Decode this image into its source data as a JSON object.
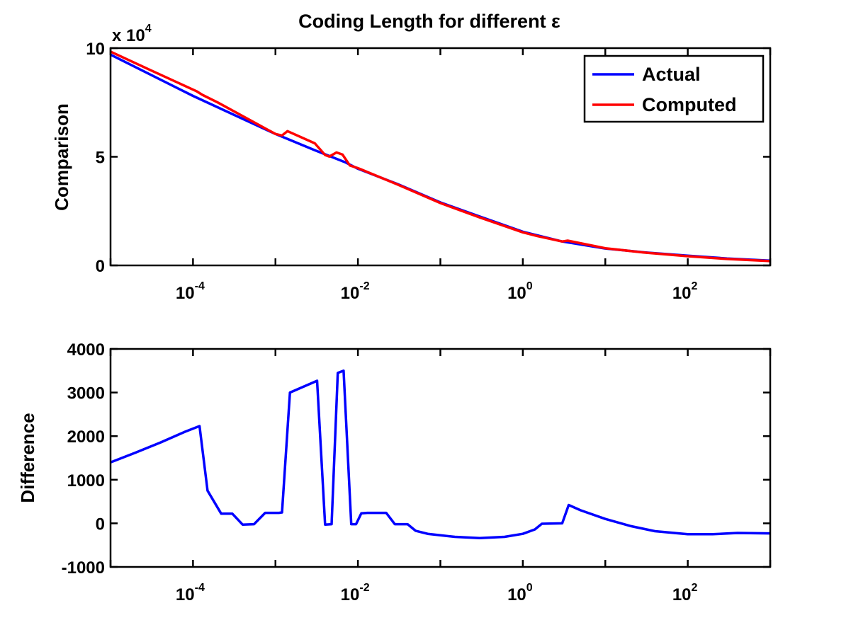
{
  "figure_title": "Coding Length for different ε",
  "chart_data": [
    {
      "type": "line",
      "title": "Coding Length for different ε",
      "xscale": "log",
      "xlim": [
        1e-05,
        1000
      ],
      "ylim": [
        0,
        100000
      ],
      "ylabel": "Comparison",
      "xlabel": "",
      "y_multiplier_label": "x 10",
      "y_multiplier_exp": "4",
      "xtick_labels": [
        {
          "x": 0.0001,
          "base": "10",
          "exp": "-4"
        },
        {
          "x": 0.01,
          "base": "10",
          "exp": "-2"
        },
        {
          "x": 1,
          "base": "10",
          "exp": "0"
        },
        {
          "x": 100,
          "base": "10",
          "exp": "2"
        }
      ],
      "ytick_labels": [
        {
          "y": 0,
          "label": "0"
        },
        {
          "y": 50000,
          "label": "5"
        },
        {
          "y": 100000,
          "label": "10"
        }
      ],
      "legend_position": "top-right",
      "grid": false,
      "series": [
        {
          "name": "Actual",
          "color": "#0000ff",
          "points": [
            [
              1e-05,
              97000
            ],
            [
              0.0001,
              78000
            ],
            [
              0.001,
              60500
            ],
            [
              0.003,
              53000
            ],
            [
              0.007,
              47500
            ],
            [
              0.01,
              44500
            ],
            [
              0.03,
              37500
            ],
            [
              0.1,
              29000
            ],
            [
              0.3,
              22500
            ],
            [
              1,
              15500
            ],
            [
              3,
              11000
            ],
            [
              10,
              7800
            ],
            [
              30,
              6000
            ],
            [
              100,
              4500
            ],
            [
              300,
              3200
            ],
            [
              1000,
              2200
            ]
          ]
        },
        {
          "name": "Computed",
          "color": "#ff0000",
          "points": [
            [
              1e-05,
              98400
            ],
            [
              3e-05,
              90000
            ],
            [
              0.00011,
              80200
            ],
            [
              0.00013,
              78500
            ],
            [
              0.0002,
              75000
            ],
            [
              0.001,
              60500
            ],
            [
              0.0012,
              59800
            ],
            [
              0.0014,
              61800
            ],
            [
              0.003,
              56200
            ],
            [
              0.004,
              50800
            ],
            [
              0.0045,
              50100
            ],
            [
              0.0055,
              52000
            ],
            [
              0.0065,
              51000
            ],
            [
              0.008,
              46000
            ],
            [
              0.01,
              44800
            ],
            [
              0.03,
              37300
            ],
            [
              0.1,
              28700
            ],
            [
              0.3,
              22100
            ],
            [
              1,
              15200
            ],
            [
              1.5,
              13500
            ],
            [
              3,
              11000
            ],
            [
              3.5,
              11400
            ],
            [
              10,
              7900
            ],
            [
              30,
              5900
            ],
            [
              100,
              4250
            ],
            [
              300,
              2950
            ],
            [
              1000,
              2000
            ]
          ]
        }
      ]
    },
    {
      "type": "line",
      "title": "",
      "xscale": "log",
      "xlim": [
        1e-05,
        1000
      ],
      "ylim": [
        -1000,
        4000
      ],
      "ylabel": "Difference",
      "xlabel": "",
      "xtick_labels": [
        {
          "x": 0.0001,
          "base": "10",
          "exp": "-4"
        },
        {
          "x": 0.01,
          "base": "10",
          "exp": "-2"
        },
        {
          "x": 1,
          "base": "10",
          "exp": "0"
        },
        {
          "x": 100,
          "base": "10",
          "exp": "2"
        }
      ],
      "ytick_labels": [
        {
          "y": -1000,
          "label": "-1000"
        },
        {
          "y": 0,
          "label": "0"
        },
        {
          "y": 1000,
          "label": "1000"
        },
        {
          "y": 2000,
          "label": "2000"
        },
        {
          "y": 3000,
          "label": "3000"
        },
        {
          "y": 4000,
          "label": "4000"
        }
      ],
      "grid": false,
      "series": [
        {
          "name": "",
          "color": "#0000ff",
          "points": [
            [
              1e-05,
              1400
            ],
            [
              2e-05,
              1620
            ],
            [
              4e-05,
              1850
            ],
            [
              8e-05,
              2100
            ],
            [
              0.00012,
              2230
            ],
            [
              0.00015,
              750
            ],
            [
              0.00022,
              220
            ],
            [
              0.0003,
              220
            ],
            [
              0.0004,
              -30
            ],
            [
              0.00055,
              -20
            ],
            [
              0.00075,
              240
            ],
            [
              0.0011,
              240
            ],
            [
              0.0012,
              250
            ],
            [
              0.0015,
              3000
            ],
            [
              0.0032,
              3270
            ],
            [
              0.004,
              -30
            ],
            [
              0.0048,
              -20
            ],
            [
              0.0057,
              3450
            ],
            [
              0.0067,
              3500
            ],
            [
              0.0083,
              -20
            ],
            [
              0.0095,
              -20
            ],
            [
              0.011,
              230
            ],
            [
              0.013,
              240
            ],
            [
              0.022,
              240
            ],
            [
              0.028,
              -20
            ],
            [
              0.04,
              -20
            ],
            [
              0.05,
              -170
            ],
            [
              0.07,
              -240
            ],
            [
              0.15,
              -310
            ],
            [
              0.3,
              -340
            ],
            [
              0.6,
              -310
            ],
            [
              1.0,
              -240
            ],
            [
              1.4,
              -140
            ],
            [
              1.7,
              -10
            ],
            [
              3.0,
              0
            ],
            [
              3.6,
              420
            ],
            [
              5,
              300
            ],
            [
              10,
              100
            ],
            [
              20,
              -60
            ],
            [
              40,
              -180
            ],
            [
              100,
              -250
            ],
            [
              200,
              -250
            ],
            [
              400,
              -220
            ],
            [
              1000,
              -230
            ]
          ]
        }
      ]
    }
  ]
}
